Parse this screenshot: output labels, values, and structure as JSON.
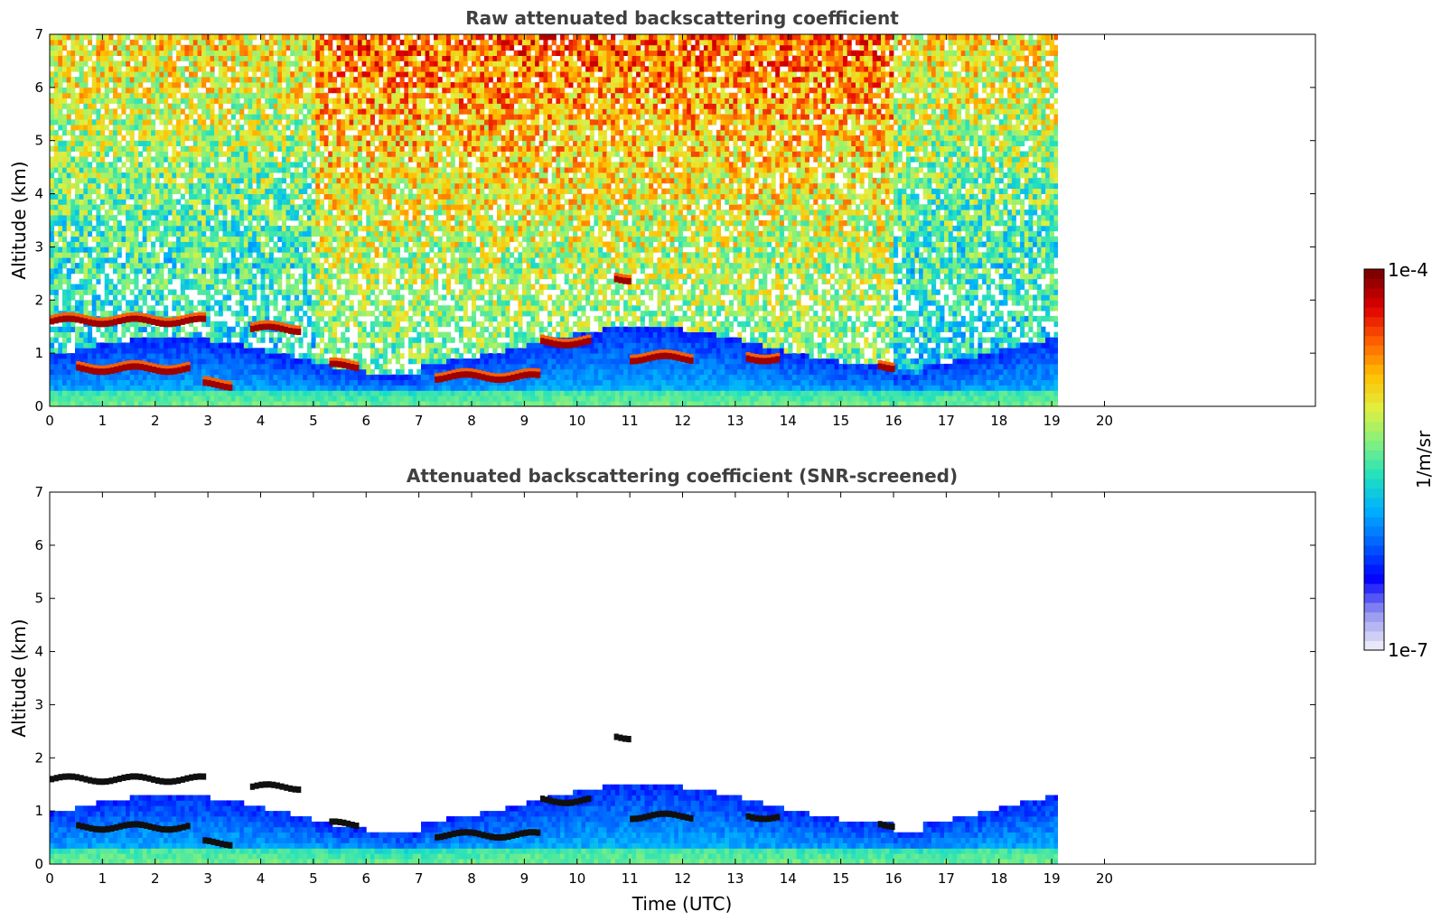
{
  "chart_data": [
    {
      "type": "heatmap",
      "title": "Raw attenuated backscattering coefficient",
      "xlabel": "",
      "ylabel": "Altitude (km)",
      "xlim": [
        0,
        24
      ],
      "ylim": [
        0,
        7
      ],
      "xticks": [
        "0",
        "1",
        "2",
        "3",
        "4",
        "5",
        "6",
        "7",
        "8",
        "9",
        "10",
        "11",
        "12",
        "13",
        "14",
        "15",
        "16",
        "17",
        "18",
        "19",
        "20"
      ],
      "yticks": [
        "0",
        "1",
        "2",
        "3",
        "4",
        "5",
        "6",
        "7"
      ],
      "data_end_time": 19.65,
      "screened": false,
      "cloud_layers": [
        {
          "t0": 0.0,
          "t1": 2.9,
          "alt": 1.6
        },
        {
          "t0": 0.5,
          "t1": 2.6,
          "alt": 0.7
        },
        {
          "t0": 3.8,
          "t1": 4.7,
          "alt": 1.45
        },
        {
          "t0": 2.9,
          "t1": 3.4,
          "alt": 0.4
        },
        {
          "t0": 5.3,
          "t1": 5.8,
          "alt": 0.75
        },
        {
          "t0": 7.3,
          "t1": 9.3,
          "alt": 0.55
        },
        {
          "t0": 9.3,
          "t1": 10.2,
          "alt": 1.2
        },
        {
          "t0": 10.7,
          "t1": 11.0,
          "alt": 2.4
        },
        {
          "t0": 11.0,
          "t1": 12.2,
          "alt": 0.9
        },
        {
          "t0": 13.2,
          "t1": 13.8,
          "alt": 0.9
        },
        {
          "t0": 15.7,
          "t1": 16.0,
          "alt": 0.75
        }
      ]
    },
    {
      "type": "heatmap",
      "title": "Attenuated backscattering coefficient (SNR-screened)",
      "xlabel": "Time (UTC)",
      "ylabel": "Altitude (km)",
      "xlim": [
        0,
        24
      ],
      "ylim": [
        0,
        7
      ],
      "xticks": [
        "0",
        "1",
        "2",
        "3",
        "4",
        "5",
        "6",
        "7",
        "8",
        "9",
        "10",
        "11",
        "12",
        "13",
        "14",
        "15",
        "16",
        "17",
        "18",
        "19",
        "20"
      ],
      "yticks": [
        "0",
        "1",
        "2",
        "3",
        "4",
        "5",
        "6",
        "7"
      ],
      "data_end_time": 19.65,
      "screened": true
    }
  ],
  "colorbar": {
    "label": "1/m/sr",
    "max_label": "1e-4",
    "min_label": "1e-7",
    "scale": "log",
    "range": [
      1e-07,
      0.0001
    ],
    "colormap": [
      "#e8e8f8",
      "#9090f0",
      "#0000ff",
      "#0060ff",
      "#00b0ff",
      "#20e0c0",
      "#80f080",
      "#e0f040",
      "#ffc000",
      "#ff6000",
      "#e00000",
      "#800000"
    ]
  }
}
